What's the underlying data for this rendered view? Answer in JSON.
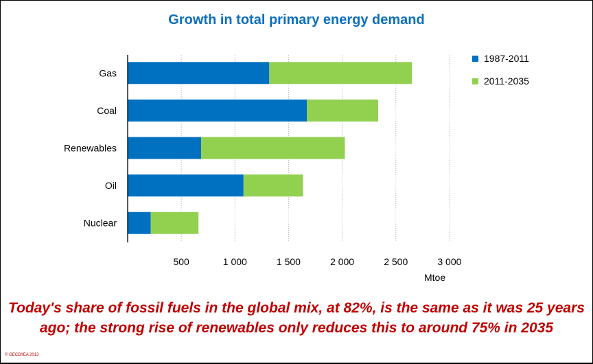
{
  "chart_data": {
    "type": "bar",
    "orientation": "horizontal",
    "stacked": true,
    "title": "Growth in total primary energy demand",
    "xlabel": "Mtoe",
    "categories": [
      "Gas",
      "Coal",
      "Renewables",
      "Oil",
      "Nuclear"
    ],
    "series": [
      {
        "name": "1987-2011",
        "color": "#0070c0",
        "values": [
          1320,
          1670,
          685,
          1080,
          215
        ]
      },
      {
        "name": "2011-2035",
        "color": "#92d050",
        "values": [
          1330,
          665,
          1340,
          555,
          445
        ]
      }
    ],
    "xlim": [
      0,
      3000
    ],
    "xticks": [
      500,
      1000,
      1500,
      2000,
      2500,
      3000
    ],
    "xtick_labels": [
      "500",
      "1 000",
      "1 500",
      "2 000",
      "2 500",
      "3 000"
    ],
    "grid": "vertical dotted",
    "legend_placement": "top-right"
  },
  "caption": "Today's share of fossil fuels in the global mix, at 82%, is the same as it was 25 years ago; the strong rise of renewables only reduces this to around 75% in 2035",
  "copyright": "© OECD/IEA 2013"
}
